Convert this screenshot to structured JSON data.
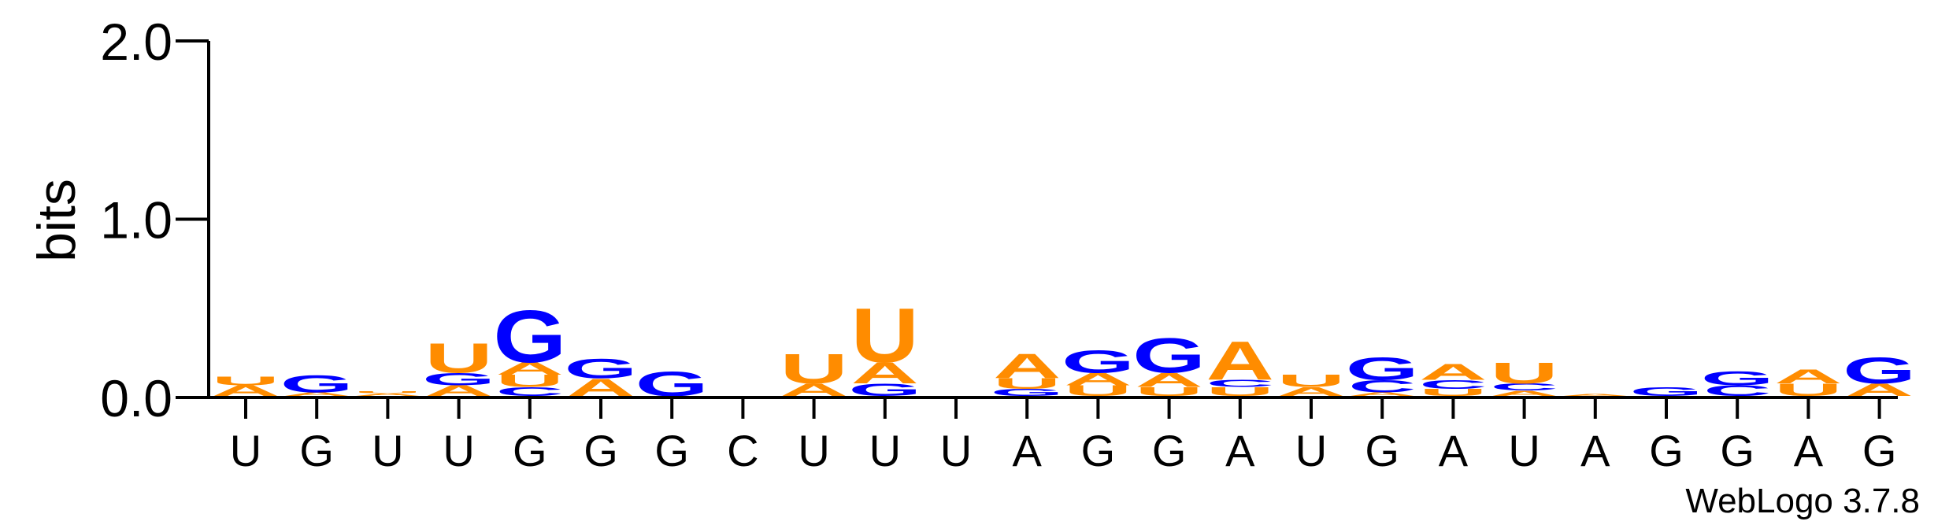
{
  "chart_data": {
    "type": "sequence-logo",
    "title": "",
    "xlabel": "",
    "ylabel": "bits",
    "ylim": [
      0,
      2.0
    ],
    "yticks": [
      0.0,
      1.0,
      2.0
    ],
    "ytick_labels": [
      "0.0",
      "1.0",
      "2.0"
    ],
    "x_labels": [
      "U",
      "G",
      "U",
      "U",
      "G",
      "G",
      "G",
      "C",
      "U",
      "U",
      "U",
      "A",
      "G",
      "G",
      "A",
      "U",
      "G",
      "A",
      "U",
      "A",
      "G",
      "G",
      "A",
      "G"
    ],
    "colors": {
      "A": "#ff8c00",
      "U": "#ff8c00",
      "G": "#0000ff",
      "C": "#0000ff"
    },
    "positions": [
      {
        "stack": [
          [
            "A",
            0.06
          ],
          [
            "U",
            0.05
          ]
        ]
      },
      {
        "stack": [
          [
            "A",
            0.02
          ],
          [
            "G",
            0.1
          ]
        ]
      },
      {
        "stack": [
          [
            "A",
            0.015
          ],
          [
            "U",
            0.01
          ]
        ]
      },
      {
        "stack": [
          [
            "A",
            0.06
          ],
          [
            "G",
            0.07
          ],
          [
            "U",
            0.17
          ]
        ]
      },
      {
        "stack": [
          [
            "C",
            0.05
          ],
          [
            "U",
            0.07
          ],
          [
            "A",
            0.07
          ],
          [
            "G",
            0.3
          ]
        ]
      },
      {
        "stack": [
          [
            "A",
            0.1
          ],
          [
            "G",
            0.11
          ]
        ]
      },
      {
        "stack": [
          [
            "G",
            0.14
          ]
        ]
      },
      {
        "stack": []
      },
      {
        "stack": [
          [
            "A",
            0.07
          ],
          [
            "U",
            0.17
          ]
        ]
      },
      {
        "stack": [
          [
            "G",
            0.07
          ],
          [
            "A",
            0.12
          ],
          [
            "U",
            0.31
          ]
        ]
      },
      {
        "stack": []
      },
      {
        "stack": [
          [
            "G",
            0.04
          ],
          [
            "U",
            0.06
          ],
          [
            "A",
            0.14
          ]
        ]
      },
      {
        "stack": [
          [
            "U",
            0.06
          ],
          [
            "A",
            0.07
          ],
          [
            "G",
            0.13
          ]
        ]
      },
      {
        "stack": [
          [
            "U",
            0.05
          ],
          [
            "A",
            0.08
          ],
          [
            "G",
            0.2
          ]
        ]
      },
      {
        "stack": [
          [
            "U",
            0.05
          ],
          [
            "C",
            0.04
          ],
          [
            "A",
            0.22
          ]
        ]
      },
      {
        "stack": [
          [
            "A",
            0.05
          ],
          [
            "U",
            0.07
          ]
        ]
      },
      {
        "stack": [
          [
            "A",
            0.02
          ],
          [
            "C",
            0.07
          ],
          [
            "G",
            0.13
          ]
        ]
      },
      {
        "stack": [
          [
            "U",
            0.04
          ],
          [
            "C",
            0.05
          ],
          [
            "A",
            0.09
          ]
        ]
      },
      {
        "stack": [
          [
            "A",
            0.03
          ],
          [
            "C",
            0.04
          ],
          [
            "U",
            0.12
          ]
        ]
      },
      {
        "stack": [
          [
            "A",
            0.01
          ]
        ]
      },
      {
        "stack": [
          [
            "G",
            0.05
          ]
        ]
      },
      {
        "stack": [
          [
            "C",
            0.06
          ],
          [
            "G",
            0.08
          ]
        ]
      },
      {
        "stack": [
          [
            "U",
            0.07
          ],
          [
            "A",
            0.08
          ]
        ]
      },
      {
        "stack": [
          [
            "A",
            0.07
          ],
          [
            "G",
            0.15
          ]
        ]
      }
    ],
    "footer": "WebLogo 3.7.8"
  }
}
